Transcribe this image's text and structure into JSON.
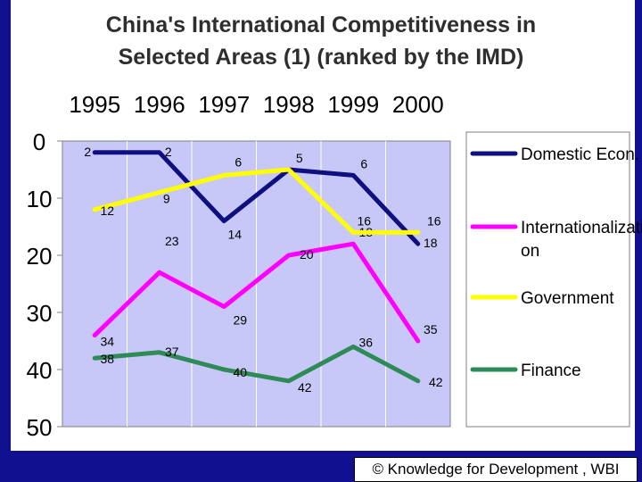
{
  "chart_data": {
    "type": "line",
    "title": "China's International Competitiveness in Selected Areas (1) (ranked by the IMD)",
    "categories": [
      "1995",
      "1996",
      "1997",
      "1998",
      "1999",
      "2000"
    ],
    "ylim": [
      0,
      50
    ],
    "y_ticks": [
      "0",
      "10",
      "20",
      "30",
      "40",
      "50"
    ],
    "y_inverted": true,
    "grid": "vertical",
    "legend_position": "right",
    "plot_background": "#c8c8f8",
    "series": [
      {
        "name": "Domestic Econ.",
        "color": "#0f0f80",
        "values": [
          2,
          2,
          14,
          5,
          6,
          18
        ],
        "labels": [
          "2",
          "2",
          "14",
          "5",
          "6",
          "18"
        ]
      },
      {
        "name": "Internationalization",
        "color": "#ff00ff",
        "values": [
          34,
          23,
          29,
          20,
          18,
          35
        ],
        "labels": [
          "34",
          "23",
          "29",
          "20",
          "18",
          "35"
        ]
      },
      {
        "name": "Government",
        "color": "#ffff00",
        "values": [
          12,
          9,
          6,
          5,
          16,
          16
        ],
        "labels": [
          "12",
          "9",
          "6",
          "",
          "16",
          "16"
        ]
      },
      {
        "name": "Finance",
        "color": "#2e8b57",
        "values": [
          38,
          37,
          40,
          42,
          36,
          42
        ],
        "labels": [
          "38",
          "37",
          "40",
          "42",
          "36",
          "42"
        ]
      }
    ],
    "legend_lines": [
      [
        "Domestic Econ."
      ],
      [
        "Internationalizati",
        "on"
      ],
      [
        "Government"
      ],
      [
        "Finance"
      ]
    ]
  },
  "footer": {
    "credit": "© Knowledge for Development , WBI"
  }
}
